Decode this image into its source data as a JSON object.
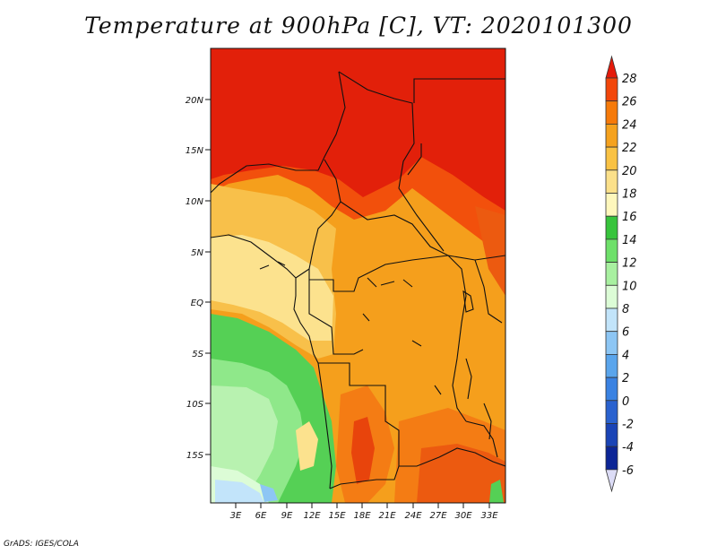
{
  "map": {
    "title": "Temperature at 900hPa [C], VT: 2020101300",
    "credit": "GrADS: IGES/COLA",
    "lat_ticks": [
      "20N",
      "15N",
      "10N",
      "5N",
      "EQ",
      "5S",
      "10S",
      "15S"
    ],
    "lon_ticks": [
      "3E",
      "6E",
      "9E",
      "12E",
      "15E",
      "18E",
      "21E",
      "24E",
      "27E",
      "30E",
      "33E"
    ],
    "variable": "Temperature",
    "level": "900hPa",
    "units": "C",
    "valid_time": "2020101300"
  },
  "colorbar": {
    "labels": [
      "28",
      "26",
      "24",
      "22",
      "20",
      "18",
      "16",
      "14",
      "12",
      "10",
      "8",
      "6",
      "4",
      "2",
      "0",
      "-2",
      "-4",
      "-6"
    ],
    "colors": [
      "#e41a0a",
      "#f2460a",
      "#f67a0a",
      "#f5a21e",
      "#f9c244",
      "#fbe08a",
      "#fef7bc",
      "#37c43c",
      "#6ee06a",
      "#a8f0a0",
      "#dcfcd6",
      "#c2e4fa",
      "#8dc6f4",
      "#5aa5ec",
      "#3a82e2",
      "#2a62cf",
      "#1a44b6",
      "#0c2596",
      "#0a0d6a"
    ]
  }
}
